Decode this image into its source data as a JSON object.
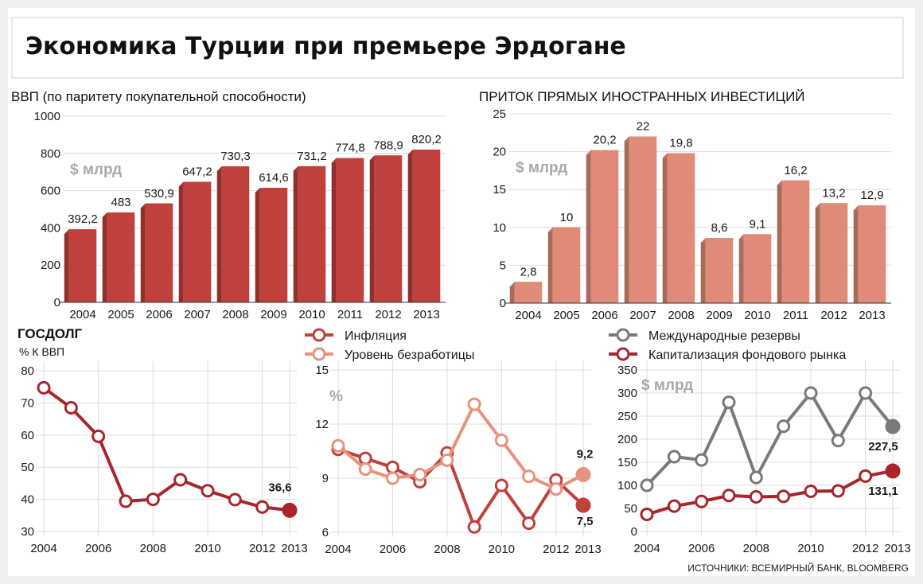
{
  "title": "Экономика Турции при премьере Эрдогане",
  "source": "ИСТОЧНИКИ: ВСЕМИРНЫЙ БАНК, BLOOMBERG",
  "colors": {
    "gdp_bar": "#c0403b",
    "fdi_bar": "#e08a78",
    "debt_line": "#a8252c",
    "inflation_line": "#c0403b",
    "unemployment_line": "#e6927e",
    "reserves_line": "#7a7a7a",
    "market_cap_line": "#a8252c"
  },
  "chart_data": [
    {
      "id": "gdp",
      "type": "bar",
      "title": "ВВП (по паритету покупательной способности)",
      "unit": "$ млрд",
      "categories": [
        "2004",
        "2005",
        "2006",
        "2007",
        "2008",
        "2009",
        "2010",
        "2011",
        "2012",
        "2013"
      ],
      "values": [
        392.2,
        483,
        530.9,
        647.2,
        730.3,
        614.6,
        731.2,
        774.8,
        788.9,
        820.2
      ],
      "value_labels": [
        "392,2",
        "483",
        "530,9",
        "647,2",
        "730,3",
        "614,6",
        "731,2",
        "774,8",
        "788,9",
        "820,2"
      ],
      "ylim": [
        0,
        1000
      ],
      "yticks": [
        0,
        200,
        400,
        600,
        800,
        1000
      ],
      "grid": true
    },
    {
      "id": "fdi",
      "type": "bar",
      "title": "ПРИТОК ПРЯМЫХ ИНОСТРАННЫХ ИНВЕСТИЦИЙ",
      "unit": "$ млрд",
      "categories": [
        "2004",
        "2005",
        "2006",
        "2007",
        "2008",
        "2009",
        "2010",
        "2011",
        "2012",
        "2013"
      ],
      "values": [
        2.8,
        10,
        20.2,
        22,
        19.8,
        8.6,
        9.1,
        16.2,
        13.2,
        12.9
      ],
      "value_labels": [
        "2,8",
        "10",
        "20,2",
        "22",
        "19,8",
        "8,6",
        "9,1",
        "16,2",
        "13,2",
        "12,9"
      ],
      "ylim": [
        0,
        25
      ],
      "yticks": [
        0,
        5,
        10,
        15,
        20,
        25
      ],
      "grid": true
    },
    {
      "id": "debt",
      "type": "line",
      "title": "ГОСДОЛГ",
      "unit": "% К ВВП",
      "x": [
        2004,
        2005,
        2006,
        2007,
        2008,
        2009,
        2010,
        2011,
        2012,
        2013
      ],
      "xticks": [
        "2004",
        "2006",
        "2008",
        "2010",
        "2012",
        "2013"
      ],
      "ylim": [
        30,
        80
      ],
      "yticks": [
        30,
        40,
        50,
        60,
        70,
        80
      ],
      "series": [
        {
          "values": [
            74.7,
            68.5,
            59.6,
            39.4,
            40.0,
            46.1,
            42.7,
            39.9,
            37.6,
            36.6
          ],
          "end_label": "36,6"
        }
      ],
      "grid": true
    },
    {
      "id": "inflation_unemployment",
      "type": "line",
      "unit": "%",
      "x": [
        2004,
        2005,
        2006,
        2007,
        2008,
        2009,
        2010,
        2011,
        2012,
        2013
      ],
      "xticks": [
        "2004",
        "2006",
        "2008",
        "2010",
        "2012",
        "2013"
      ],
      "ylim": [
        6,
        15
      ],
      "yticks": [
        6,
        9,
        12,
        15
      ],
      "series": [
        {
          "name": "Инфляция",
          "values": [
            10.6,
            10.1,
            9.6,
            8.8,
            10.4,
            6.3,
            8.6,
            6.5,
            8.9,
            7.5
          ],
          "end_label": "7,5"
        },
        {
          "name": "Уровень безработицы",
          "values": [
            10.8,
            9.5,
            9.0,
            9.2,
            10.0,
            13.1,
            11.1,
            9.1,
            8.4,
            9.2
          ],
          "end_label": "9,2"
        }
      ],
      "grid": true
    },
    {
      "id": "reserves_market",
      "type": "line",
      "unit": "$ млрд",
      "x": [
        2004,
        2005,
        2006,
        2007,
        2008,
        2009,
        2010,
        2011,
        2012,
        2013
      ],
      "xticks": [
        "2004",
        "2006",
        "2008",
        "2010",
        "2012",
        "2013"
      ],
      "ylim": [
        0,
        350
      ],
      "yticks": [
        0,
        50,
        100,
        150,
        200,
        250,
        300,
        350
      ],
      "series": [
        {
          "name": "Международные резервы",
          "values": [
            100,
            162,
            155,
            280,
            117,
            228,
            300,
            197,
            300,
            227.5
          ],
          "end_label": "227,5"
        },
        {
          "name": "Капитализация фондового рынка",
          "values": [
            37,
            55,
            65,
            78,
            75,
            76,
            87,
            88,
            120,
            131.1
          ],
          "end_label": "131,1"
        }
      ],
      "grid": true
    }
  ]
}
